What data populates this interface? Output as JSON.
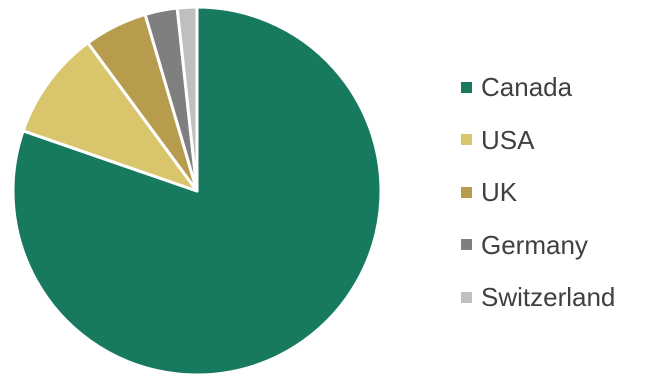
{
  "chart_data": {
    "type": "pie",
    "categories": [
      "Canada",
      "USA",
      "UK",
      "Germany",
      "Switzerland"
    ],
    "values": [
      79.5,
      9.5,
      5.5,
      2.8,
      1.7
    ],
    "colors": [
      "#177a5f",
      "#d9c66c",
      "#b89c4e",
      "#7f7f7f",
      "#bfbfbf"
    ],
    "start_angle": "12 o'clock",
    "direction": "clockwise",
    "legend_position": "right",
    "slice_separator_color": "#ffffff"
  }
}
